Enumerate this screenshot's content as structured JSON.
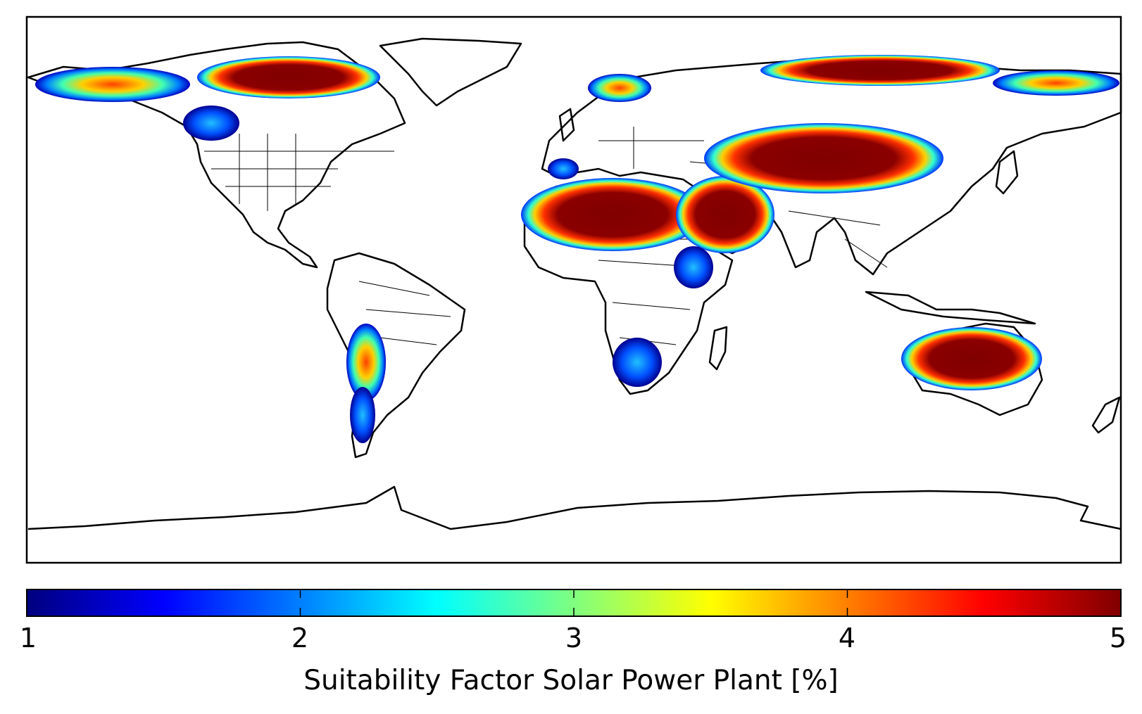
{
  "chart_data": {
    "type": "heatmap",
    "title": "",
    "colorbar": {
      "label": "Suitability Factor Solar Power Plant [%]",
      "min": 1,
      "max": 5,
      "ticks": [
        "1",
        "2",
        "3",
        "4",
        "5"
      ],
      "colormap": "jet"
    },
    "regions": [
      {
        "name": "Sahara",
        "value": 5
      },
      {
        "name": "Arabian Peninsula",
        "value": 5
      },
      {
        "name": "Central Asia",
        "value": 4.8
      },
      {
        "name": "Northern Canada",
        "value": 4.5
      },
      {
        "name": "Northern Siberia",
        "value": 4.5
      },
      {
        "name": "Central Australia",
        "value": 4.5
      },
      {
        "name": "Atacama / Andes",
        "value": 3.8
      },
      {
        "name": "Southern Africa (Kalahari)",
        "value": 2
      }
    ]
  },
  "colors": {
    "jet_0": "#00007f",
    "jet_1": "#0000ff",
    "jet_2": "#007fff",
    "jet_3": "#00ffff",
    "jet_4": "#7fff7f",
    "jet_5": "#ffff00",
    "jet_6": "#ff7f00",
    "jet_7": "#ff0000",
    "jet_8": "#7f0000"
  }
}
